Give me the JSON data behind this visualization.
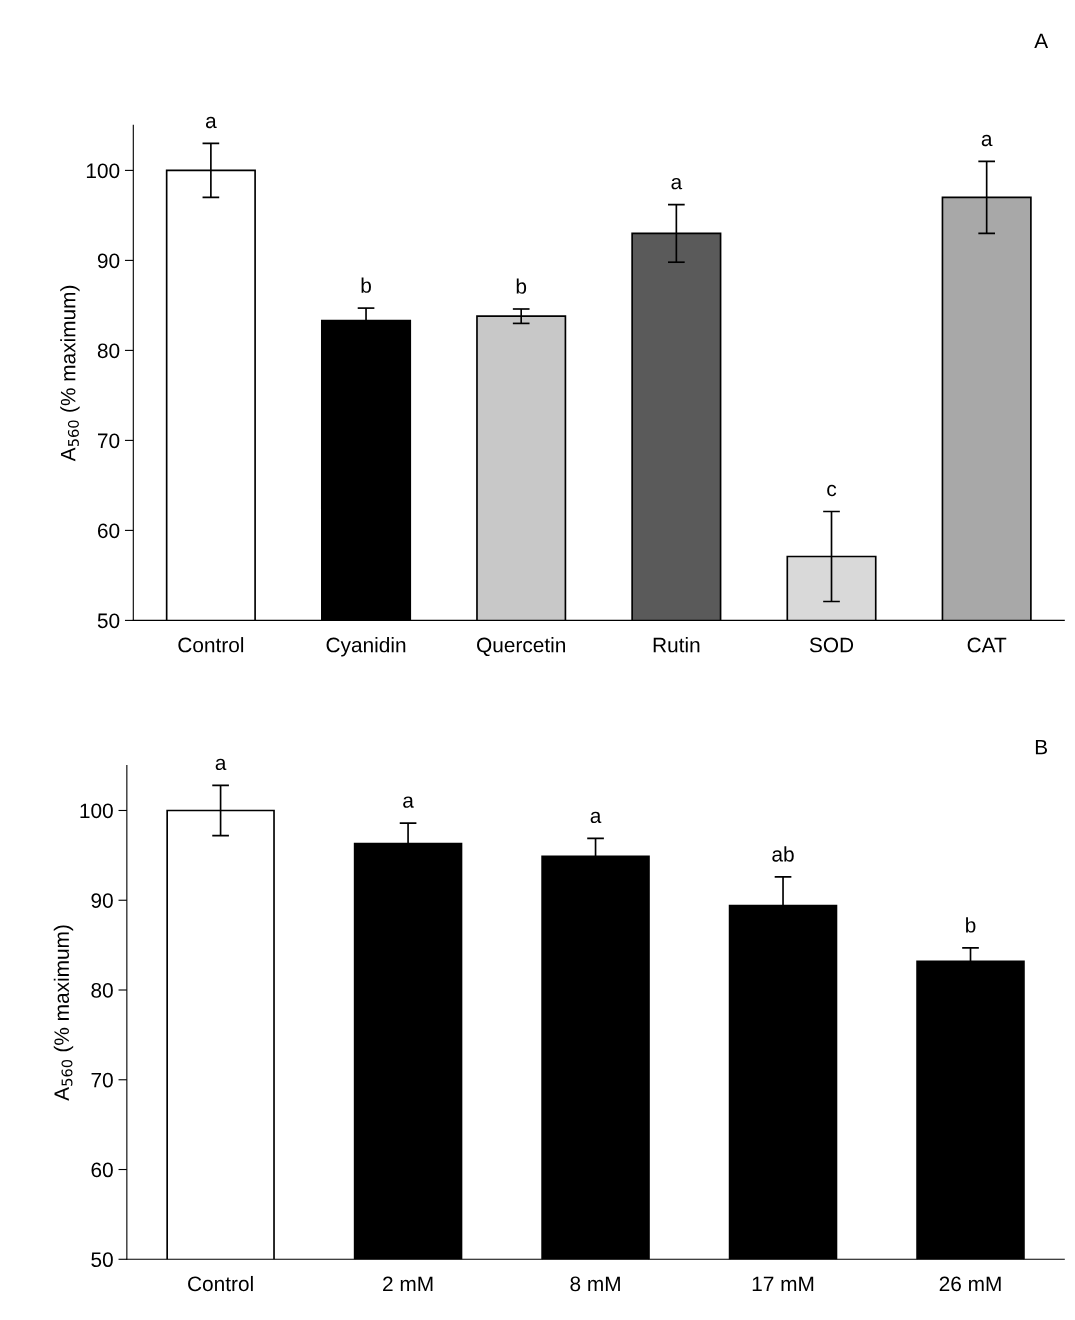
{
  "chart_data": [
    {
      "type": "bar",
      "ylabel": "A$_{560}$ (% maximum)",
      "categories": [
        "Control",
        "Cyanidin",
        "Quercetin",
        "Rutin",
        "SOD",
        "CAT"
      ],
      "values": [
        100,
        83.3,
        83.8,
        93.0,
        57.1,
        97.0
      ],
      "errors": [
        3.0,
        1.4,
        0.8,
        3.2,
        5.0,
        4.0
      ],
      "colors": [
        "#ffffff",
        "#000000",
        "#c8c8c8",
        "#5a5a5a",
        "#d9d9d9",
        "#a8a8a8"
      ],
      "ylim": [
        50,
        105
      ],
      "yticks": [
        50,
        60,
        70,
        80,
        90,
        100
      ],
      "grid": false,
      "annotations": [
        "A",
        {
          "text": "a",
          "x": "Control",
          "y": 103.0
        },
        {
          "text": "b",
          "x": "Cyanidin",
          "y": 84.7
        },
        {
          "text": "b",
          "x": "Quercetin",
          "y": 84.6
        },
        {
          "text": "a",
          "x": "Rutin",
          "y": 96.2
        },
        {
          "text": "c",
          "x": "SOD",
          "y": 62.1
        },
        {
          "text": "a",
          "x": "CAT",
          "y": 101.0
        }
      ]
    },
    {
      "type": "bar",
      "ylabel": "A$_{560}$ (% maximum)",
      "categories": [
        "Control",
        "2 mM",
        "8 mM",
        "17 mM",
        "26 mM"
      ],
      "values": [
        100,
        96.3,
        94.9,
        89.4,
        83.2
      ],
      "errors": [
        2.8,
        2.3,
        2.0,
        3.2,
        1.5
      ],
      "colors": [
        "#ffffff",
        "#000000",
        "#000000",
        "#000000",
        "#000000"
      ],
      "ylim": [
        50,
        105
      ],
      "yticks": [
        50,
        60,
        70,
        80,
        90,
        100
      ],
      "grid": false,
      "annotations": [
        "B",
        {
          "text": "a",
          "x": "Control",
          "y": 102.8
        },
        {
          "text": "a",
          "x": "2 mM",
          "y": 98.6
        },
        {
          "text": "a",
          "x": "8 mM",
          "y": 96.9
        },
        {
          "text": "ab",
          "x": "17 mM",
          "y": 92.6
        },
        {
          "text": "b",
          "x": "26 mM",
          "y": 84.7
        }
      ]
    }
  ]
}
